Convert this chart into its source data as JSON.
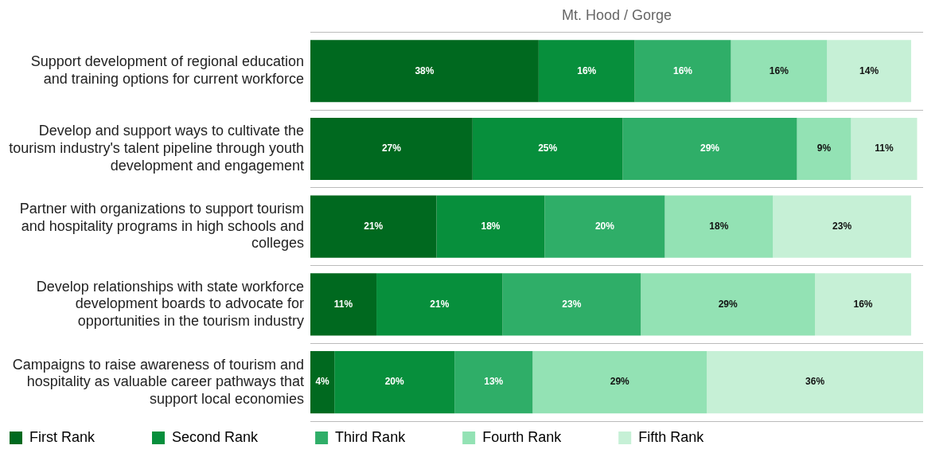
{
  "chart_data": {
    "type": "bar",
    "orientation": "horizontal",
    "stacked": true,
    "title": "Mt. Hood / Gorge",
    "categories": [
      "Support development of regional education and training options for current workforce",
      "Develop and support ways to cultivate the tourism industry's talent pipeline through youth development and engagement",
      "Partner with organizations to support tourism and hospitality programs in high schools and colleges",
      "Develop relationships with state workforce development boards to advocate for opportunities in the tourism industry",
      "Campaigns to raise awareness of tourism and hospitality as valuable career pathways that support local economies"
    ],
    "series": [
      {
        "name": "First Rank",
        "color": "#00691f",
        "values": [
          38,
          27,
          21,
          11,
          4
        ],
        "value_labels": [
          "38%",
          "27%",
          "21%",
          "11%",
          "4%"
        ]
      },
      {
        "name": "Second Rank",
        "color": "#078f3c",
        "values": [
          16,
          25,
          18,
          21,
          20
        ],
        "value_labels": [
          "16%",
          "25%",
          "18%",
          "21%",
          "20%"
        ]
      },
      {
        "name": "Third Rank",
        "color": "#2fae68",
        "values": [
          16,
          29,
          20,
          23,
          13
        ],
        "value_labels": [
          "16%",
          "29%",
          "20%",
          "23%",
          "13%"
        ]
      },
      {
        "name": "Fourth Rank",
        "color": "#93e2b4",
        "values": [
          16,
          9,
          18,
          29,
          29
        ],
        "value_labels": [
          "16%",
          "9%",
          "18%",
          "29%",
          "29%"
        ]
      },
      {
        "name": "Fifth Rank",
        "color": "#c6f0d6",
        "values": [
          14,
          11,
          23,
          16,
          36
        ],
        "value_labels": [
          "14%",
          "11%",
          "23%",
          "16%",
          "36%"
        ]
      }
    ],
    "grid": "y",
    "legend": "bottom left"
  }
}
